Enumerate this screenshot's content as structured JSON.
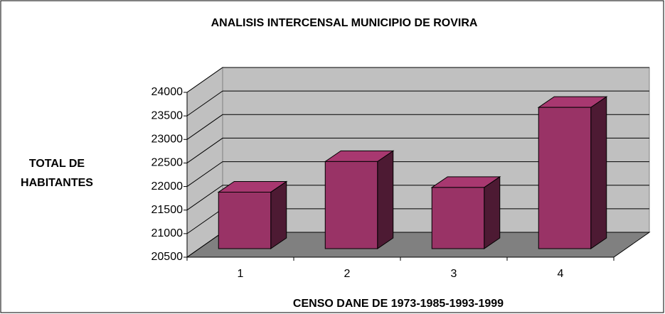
{
  "chart_data": {
    "type": "bar3d",
    "title": "ANALISIS INTERCENSAL MUNICIPIO DE ROVIRA",
    "ylabel_lines": [
      "TOTAL DE",
      "HABITANTES"
    ],
    "xlabel": "CENSO DANE DE 1973-1985-1993-1999",
    "categories": [
      "1",
      "2",
      "3",
      "4"
    ],
    "values": [
      21700,
      22350,
      21800,
      23500
    ],
    "color": "#993366",
    "ylim": [
      20500,
      24000
    ],
    "yticks": [
      20500,
      21000,
      21500,
      22000,
      22500,
      23000,
      23500,
      24000
    ],
    "grid": true
  }
}
